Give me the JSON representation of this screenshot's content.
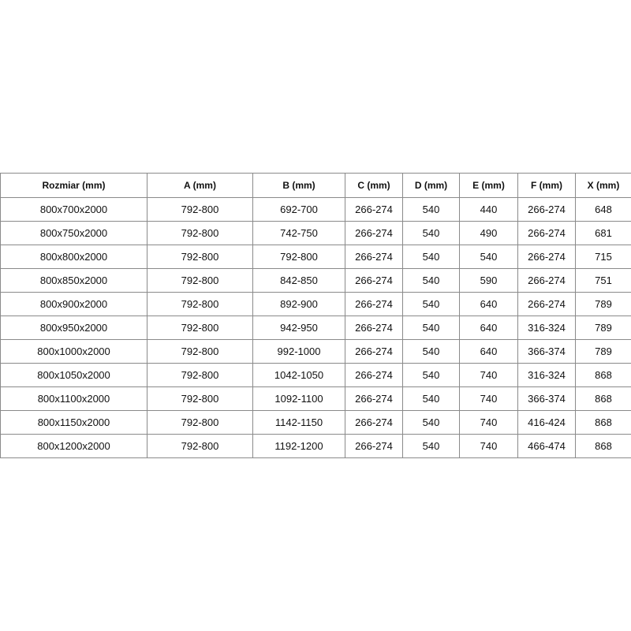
{
  "table": {
    "header": [
      "Rozmiar (mm)",
      "A (mm)",
      "B (mm)",
      "C (mm)",
      "D (mm)",
      "E (mm)",
      "F (mm)",
      "X (mm)"
    ],
    "rows": [
      [
        "800x700x2000",
        "792-800",
        "692-700",
        "266-274",
        "540",
        "440",
        "266-274",
        "648"
      ],
      [
        "800x750x2000",
        "792-800",
        "742-750",
        "266-274",
        "540",
        "490",
        "266-274",
        "681"
      ],
      [
        "800x800x2000",
        "792-800",
        "792-800",
        "266-274",
        "540",
        "540",
        "266-274",
        "715"
      ],
      [
        "800x850x2000",
        "792-800",
        "842-850",
        "266-274",
        "540",
        "590",
        "266-274",
        "751"
      ],
      [
        "800x900x2000",
        "792-800",
        "892-900",
        "266-274",
        "540",
        "640",
        "266-274",
        "789"
      ],
      [
        "800x950x2000",
        "792-800",
        "942-950",
        "266-274",
        "540",
        "640",
        "316-324",
        "789"
      ],
      [
        "800x1000x2000",
        "792-800",
        "992-1000",
        "266-274",
        "540",
        "640",
        "366-374",
        "789"
      ],
      [
        "800x1050x2000",
        "792-800",
        "1042-1050",
        "266-274",
        "540",
        "740",
        "316-324",
        "868"
      ],
      [
        "800x1100x2000",
        "792-800",
        "1092-1100",
        "266-274",
        "540",
        "740",
        "366-374",
        "868"
      ],
      [
        "800x1150x2000",
        "792-800",
        "1142-1150",
        "266-274",
        "540",
        "740",
        "416-424",
        "868"
      ],
      [
        "800x1200x2000",
        "792-800",
        "1192-1200",
        "266-274",
        "540",
        "740",
        "466-474",
        "868"
      ]
    ]
  }
}
